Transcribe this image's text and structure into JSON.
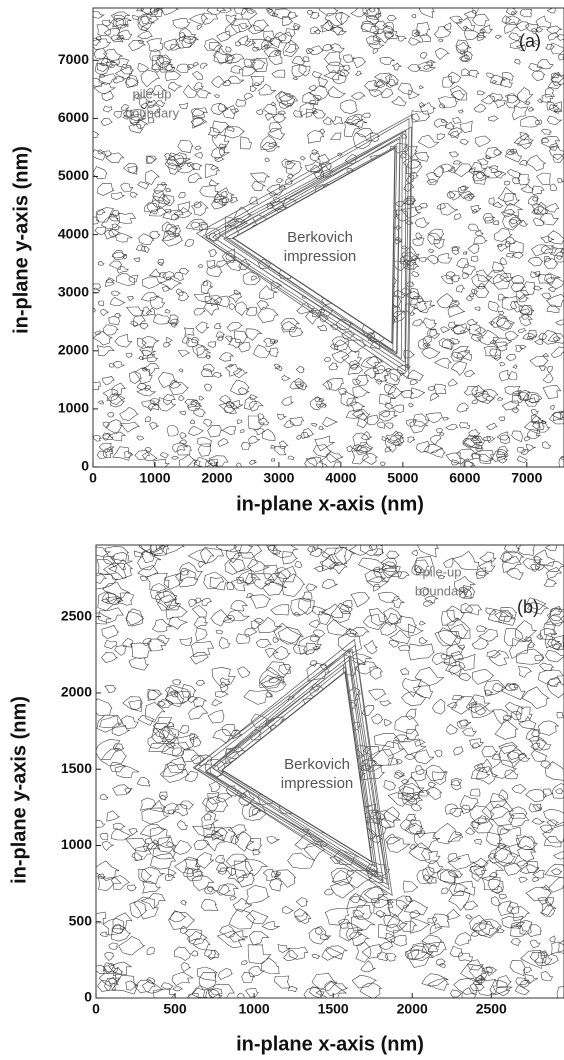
{
  "chart_data": [
    {
      "type": "contour",
      "panel_label": "(a)",
      "x_label": "in-plane x-axis (nm)",
      "y_label": "in-plane y-axis (nm)",
      "annotations": [
        [
          "Berkovich",
          "impression"
        ],
        [
          "pile-up",
          "boundary"
        ]
      ],
      "xlim": [
        0,
        7600
      ],
      "ylim": [
        0,
        7900
      ],
      "xticks": [
        0,
        1000,
        2000,
        3000,
        4000,
        5000,
        6000,
        7000
      ],
      "yticks": [
        0,
        1000,
        2000,
        3000,
        4000,
        5000,
        6000,
        7000
      ]
    },
    {
      "type": "contour",
      "panel_label": "(b)",
      "x_label": "in-plane x-axis (nm)",
      "y_label": "in-plane y-axis (nm)",
      "annotations": [
        [
          "Berkovich",
          "impression"
        ],
        [
          "pile-up",
          "boundary"
        ]
      ],
      "xlim": [
        0,
        2960
      ],
      "ylim": [
        0,
        2970
      ],
      "xticks": [
        0,
        500,
        1000,
        1500,
        2000,
        2500
      ],
      "yticks": [
        0,
        500,
        1000,
        1500,
        2000,
        2500
      ]
    }
  ]
}
